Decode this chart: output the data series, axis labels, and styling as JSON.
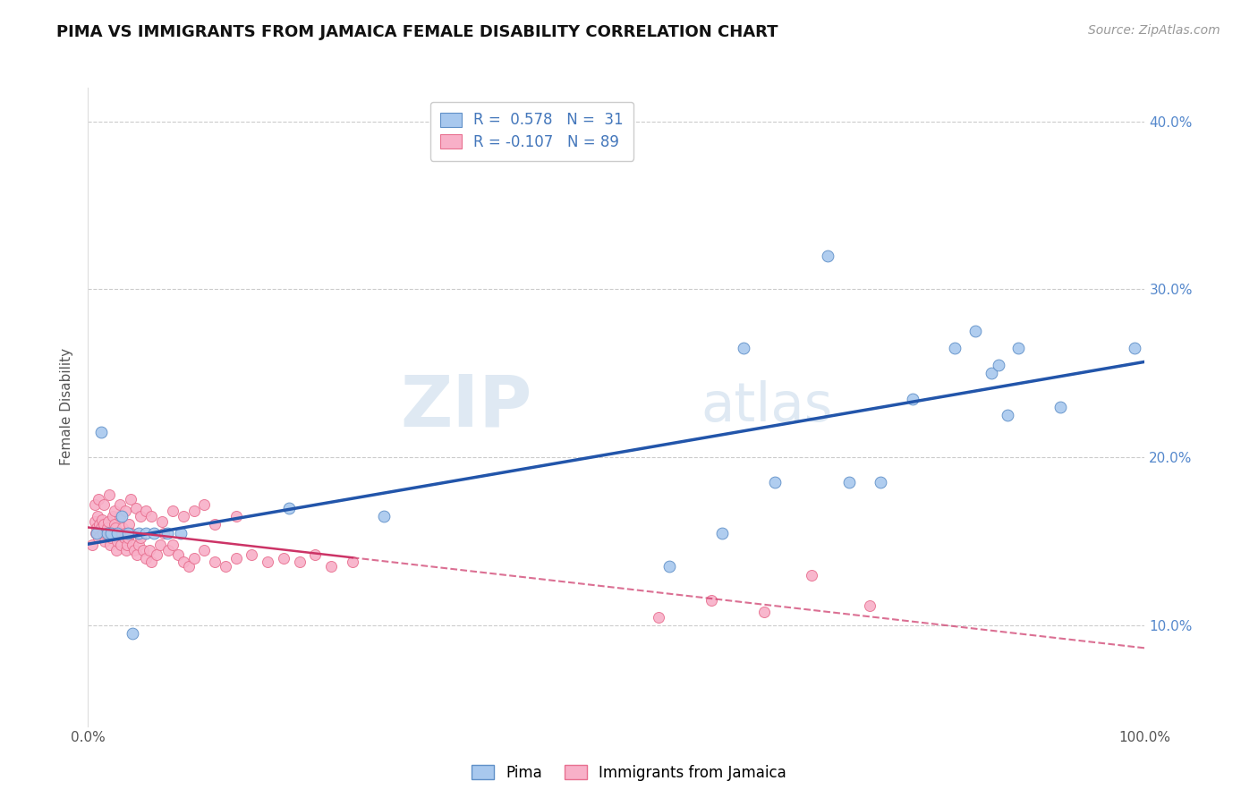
{
  "title": "PIMA VS IMMIGRANTS FROM JAMAICA FEMALE DISABILITY CORRELATION CHART",
  "source": "Source: ZipAtlas.com",
  "ylabel": "Female Disability",
  "xlim": [
    0,
    1.0
  ],
  "ylim": [
    0.04,
    0.42
  ],
  "xticks": [
    0.0,
    0.1,
    0.2,
    0.3,
    0.4,
    0.5,
    0.6,
    0.7,
    0.8,
    0.9,
    1.0
  ],
  "xticklabels": [
    "0.0%",
    "",
    "",
    "",
    "",
    "",
    "",
    "",
    "",
    "",
    "100.0%"
  ],
  "yticks": [
    0.1,
    0.2,
    0.3,
    0.4
  ],
  "yticklabels": [
    "10.0%",
    "20.0%",
    "30.0%",
    "40.0%"
  ],
  "legend_R_pima": "0.578",
  "legend_N_pima": "31",
  "legend_R_jamaica": "-0.107",
  "legend_N_jamaica": "89",
  "pima_color": "#a8c8ee",
  "pima_edge_color": "#6090c8",
  "jamaica_color": "#f8b0c8",
  "jamaica_edge_color": "#e87090",
  "pima_trend_color": "#2255aa",
  "jamaica_trend_color": "#cc3366",
  "background_color": "#ffffff",
  "grid_color": "#cccccc",
  "watermark_color": "#c5d8ea",
  "pima_x": [
    0.008,
    0.012,
    0.018,
    0.022,
    0.028,
    0.032,
    0.038,
    0.042,
    0.048,
    0.055,
    0.062,
    0.075,
    0.088,
    0.19,
    0.28,
    0.55,
    0.6,
    0.62,
    0.65,
    0.7,
    0.72,
    0.75,
    0.78,
    0.82,
    0.84,
    0.855,
    0.862,
    0.87,
    0.88,
    0.92,
    0.99
  ],
  "pima_y": [
    0.155,
    0.215,
    0.155,
    0.155,
    0.155,
    0.165,
    0.155,
    0.095,
    0.155,
    0.155,
    0.155,
    0.155,
    0.155,
    0.17,
    0.165,
    0.135,
    0.155,
    0.265,
    0.185,
    0.32,
    0.185,
    0.185,
    0.235,
    0.265,
    0.275,
    0.25,
    0.255,
    0.225,
    0.265,
    0.23,
    0.265
  ],
  "jamaica_x": [
    0.004,
    0.006,
    0.007,
    0.008,
    0.009,
    0.01,
    0.011,
    0.012,
    0.013,
    0.014,
    0.015,
    0.016,
    0.017,
    0.018,
    0.019,
    0.02,
    0.021,
    0.022,
    0.023,
    0.024,
    0.025,
    0.026,
    0.027,
    0.028,
    0.029,
    0.03,
    0.031,
    0.032,
    0.033,
    0.034,
    0.035,
    0.036,
    0.037,
    0.038,
    0.039,
    0.04,
    0.042,
    0.044,
    0.046,
    0.048,
    0.05,
    0.052,
    0.055,
    0.058,
    0.06,
    0.065,
    0.068,
    0.072,
    0.076,
    0.08,
    0.085,
    0.09,
    0.095,
    0.1,
    0.11,
    0.12,
    0.13,
    0.14,
    0.155,
    0.17,
    0.185,
    0.2,
    0.215,
    0.23,
    0.25,
    0.006,
    0.01,
    0.015,
    0.02,
    0.025,
    0.03,
    0.035,
    0.04,
    0.045,
    0.05,
    0.055,
    0.06,
    0.07,
    0.08,
    0.09,
    0.1,
    0.11,
    0.12,
    0.14,
    0.54,
    0.59,
    0.64,
    0.685,
    0.74
  ],
  "jamaica_y": [
    0.148,
    0.162,
    0.155,
    0.158,
    0.165,
    0.152,
    0.16,
    0.158,
    0.163,
    0.155,
    0.16,
    0.15,
    0.155,
    0.158,
    0.162,
    0.155,
    0.148,
    0.152,
    0.165,
    0.155,
    0.16,
    0.158,
    0.145,
    0.15,
    0.155,
    0.165,
    0.148,
    0.155,
    0.158,
    0.152,
    0.155,
    0.145,
    0.148,
    0.152,
    0.16,
    0.155,
    0.148,
    0.145,
    0.142,
    0.148,
    0.152,
    0.145,
    0.14,
    0.145,
    0.138,
    0.142,
    0.148,
    0.155,
    0.145,
    0.148,
    0.142,
    0.138,
    0.135,
    0.14,
    0.145,
    0.138,
    0.135,
    0.14,
    0.142,
    0.138,
    0.14,
    0.138,
    0.142,
    0.135,
    0.138,
    0.172,
    0.175,
    0.172,
    0.178,
    0.168,
    0.172,
    0.168,
    0.175,
    0.17,
    0.165,
    0.168,
    0.165,
    0.162,
    0.168,
    0.165,
    0.168,
    0.172,
    0.16,
    0.165,
    0.105,
    0.115,
    0.108,
    0.13,
    0.112
  ]
}
